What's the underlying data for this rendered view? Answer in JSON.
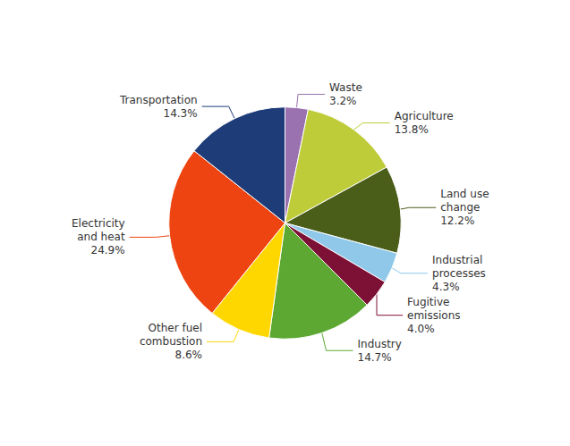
{
  "chart_data": {
    "type": "pie",
    "categories": [
      "Waste",
      "Agriculture",
      "Land use\nchange",
      "Industrial\nprocesses",
      "Fugitive\nemissions",
      "Industry",
      "Other fuel\ncombustion",
      "Electricity\nand heat",
      "Transportation"
    ],
    "values": [
      3.2,
      13.8,
      12.2,
      4.3,
      4.0,
      14.7,
      8.6,
      24.9,
      14.3
    ],
    "value_labels": [
      "3.2%",
      "13.8%",
      "12.2%",
      "4.3%",
      "4.0%",
      "14.7%",
      "8.6%",
      "24.9%",
      "14.3%"
    ],
    "colors": [
      "#9B72B0",
      "#BFCC3A",
      "#4A5E1A",
      "#8FC8E8",
      "#7D1035",
      "#5DA832",
      "#FFD700",
      "#EE4411",
      "#1E3C78"
    ],
    "data_labels": true
  }
}
